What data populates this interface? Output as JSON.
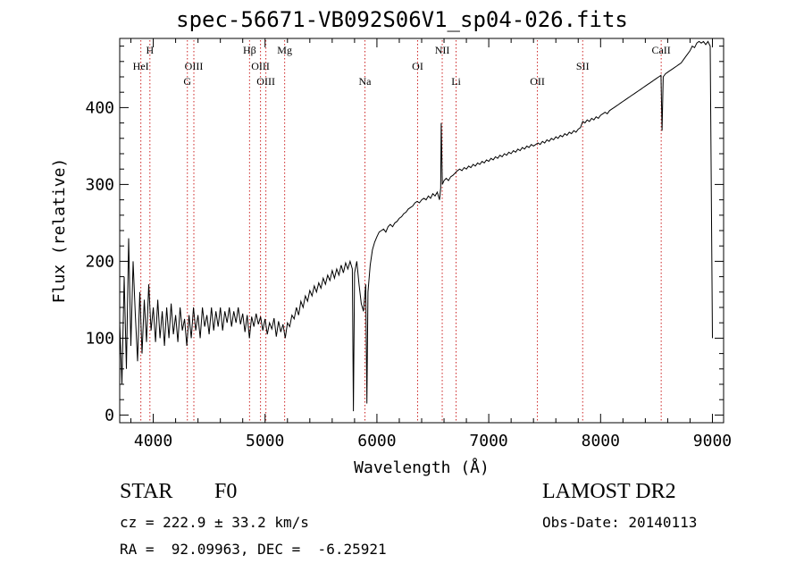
{
  "chart_data": {
    "type": "line",
    "title": "spec-56671-VB092S06V1_sp04-026.fits",
    "xlabel": "Wavelength (Å)",
    "ylabel": "Flux (relative)",
    "xlim": [
      3700,
      9100
    ],
    "ylim": [
      -10,
      490
    ],
    "xticks": [
      4000,
      5000,
      6000,
      7000,
      8000,
      9000
    ],
    "yticks": [
      0,
      100,
      200,
      300,
      400
    ],
    "grid": false,
    "line_color": "#000000",
    "marker_color": "#cc2222",
    "line_markers": [
      {
        "label": "HeI",
        "wavelength": 3889,
        "row": 1
      },
      {
        "label": "H",
        "wavelength": 3970,
        "row": 0
      },
      {
        "label": "OIII",
        "wavelength": 4363,
        "row": 1
      },
      {
        "label": "G",
        "wavelength": 4305,
        "row": 2
      },
      {
        "label": "Hβ",
        "wavelength": 4861,
        "row": 0
      },
      {
        "label": "OIII",
        "wavelength": 4959,
        "row": 1
      },
      {
        "label": "OIII",
        "wavelength": 5007,
        "row": 2
      },
      {
        "label": "Mg",
        "wavelength": 5175,
        "row": 0
      },
      {
        "label": "Na",
        "wavelength": 5893,
        "row": 2
      },
      {
        "label": "OI",
        "wavelength": 6364,
        "row": 1
      },
      {
        "label": "NII",
        "wavelength": 6584,
        "row": 0
      },
      {
        "label": "Li",
        "wavelength": 6708,
        "row": 2
      },
      {
        "label": "OII",
        "wavelength": 7435,
        "row": 2
      },
      {
        "label": "SII",
        "wavelength": 7840,
        "row": 1
      },
      {
        "label": "CaII",
        "wavelength": 8542,
        "row": 0
      }
    ],
    "series": [
      {
        "points": [
          [
            3700,
            120
          ],
          [
            3720,
            40
          ],
          [
            3740,
            180
          ],
          [
            3760,
            60
          ],
          [
            3780,
            230
          ],
          [
            3800,
            90
          ],
          [
            3820,
            200
          ],
          [
            3840,
            130
          ],
          [
            3860,
            70
          ],
          [
            3880,
            160
          ],
          [
            3900,
            80
          ],
          [
            3920,
            150
          ],
          [
            3940,
            95
          ],
          [
            3960,
            170
          ],
          [
            3980,
            110
          ],
          [
            4000,
            140
          ],
          [
            4020,
            95
          ],
          [
            4040,
            150
          ],
          [
            4060,
            100
          ],
          [
            4080,
            135
          ],
          [
            4100,
            90
          ],
          [
            4120,
            140
          ],
          [
            4140,
            100
          ],
          [
            4160,
            145
          ],
          [
            4180,
            105
          ],
          [
            4200,
            130
          ],
          [
            4220,
            95
          ],
          [
            4240,
            140
          ],
          [
            4260,
            110
          ],
          [
            4280,
            125
          ],
          [
            4300,
            90
          ],
          [
            4320,
            130
          ],
          [
            4340,
            100
          ],
          [
            4360,
            140
          ],
          [
            4380,
            110
          ],
          [
            4400,
            130
          ],
          [
            4420,
            100
          ],
          [
            4440,
            140
          ],
          [
            4460,
            115
          ],
          [
            4480,
            130
          ],
          [
            4500,
            105
          ],
          [
            4520,
            140
          ],
          [
            4540,
            110
          ],
          [
            4560,
            135
          ],
          [
            4580,
            115
          ],
          [
            4600,
            140
          ],
          [
            4620,
            110
          ],
          [
            4640,
            135
          ],
          [
            4660,
            120
          ],
          [
            4680,
            140
          ],
          [
            4700,
            115
          ],
          [
            4720,
            135
          ],
          [
            4740,
            120
          ],
          [
            4760,
            140
          ],
          [
            4780,
            118
          ],
          [
            4800,
            132
          ],
          [
            4820,
            108
          ],
          [
            4840,
            130
          ],
          [
            4860,
            100
          ],
          [
            4880,
            128
          ],
          [
            4900,
            115
          ],
          [
            4920,
            132
          ],
          [
            4940,
            118
          ],
          [
            4960,
            128
          ],
          [
            4980,
            110
          ],
          [
            5000,
            125
          ],
          [
            5020,
            105
          ],
          [
            5040,
            120
          ],
          [
            5060,
            112
          ],
          [
            5080,
            126
          ],
          [
            5100,
            102
          ],
          [
            5120,
            122
          ],
          [
            5140,
            108
          ],
          [
            5160,
            118
          ],
          [
            5180,
            100
          ],
          [
            5200,
            120
          ],
          [
            5220,
            115
          ],
          [
            5240,
            130
          ],
          [
            5260,
            125
          ],
          [
            5280,
            140
          ],
          [
            5300,
            130
          ],
          [
            5320,
            148
          ],
          [
            5340,
            140
          ],
          [
            5360,
            155
          ],
          [
            5380,
            148
          ],
          [
            5400,
            162
          ],
          [
            5420,
            155
          ],
          [
            5440,
            168
          ],
          [
            5460,
            160
          ],
          [
            5480,
            172
          ],
          [
            5500,
            165
          ],
          [
            5520,
            178
          ],
          [
            5540,
            170
          ],
          [
            5560,
            182
          ],
          [
            5580,
            175
          ],
          [
            5600,
            188
          ],
          [
            5620,
            178
          ],
          [
            5640,
            190
          ],
          [
            5660,
            182
          ],
          [
            5680,
            195
          ],
          [
            5700,
            185
          ],
          [
            5720,
            198
          ],
          [
            5740,
            190
          ],
          [
            5760,
            200
          ],
          [
            5780,
            190
          ],
          [
            5790,
            5
          ],
          [
            5800,
            185
          ],
          [
            5820,
            200
          ],
          [
            5840,
            170
          ],
          [
            5860,
            145
          ],
          [
            5880,
            135
          ],
          [
            5900,
            170
          ],
          [
            5910,
            15
          ],
          [
            5920,
            160
          ],
          [
            5940,
            195
          ],
          [
            5960,
            215
          ],
          [
            5980,
            225
          ],
          [
            6000,
            232
          ],
          [
            6020,
            238
          ],
          [
            6040,
            240
          ],
          [
            6060,
            242
          ],
          [
            6080,
            238
          ],
          [
            6100,
            245
          ],
          [
            6120,
            248
          ],
          [
            6140,
            245
          ],
          [
            6160,
            250
          ],
          [
            6180,
            252
          ],
          [
            6200,
            256
          ],
          [
            6220,
            258
          ],
          [
            6240,
            262
          ],
          [
            6260,
            264
          ],
          [
            6280,
            268
          ],
          [
            6300,
            270
          ],
          [
            6320,
            272
          ],
          [
            6340,
            276
          ],
          [
            6360,
            278
          ],
          [
            6380,
            276
          ],
          [
            6400,
            280
          ],
          [
            6420,
            282
          ],
          [
            6440,
            280
          ],
          [
            6460,
            285
          ],
          [
            6480,
            282
          ],
          [
            6500,
            288
          ],
          [
            6520,
            285
          ],
          [
            6540,
            290
          ],
          [
            6560,
            280
          ],
          [
            6570,
            295
          ],
          [
            6575,
            380
          ],
          [
            6585,
            300
          ],
          [
            6600,
            305
          ],
          [
            6620,
            308
          ],
          [
            6640,
            305
          ],
          [
            6660,
            310
          ],
          [
            6680,
            312
          ],
          [
            6700,
            315
          ],
          [
            6720,
            318
          ],
          [
            6740,
            320
          ],
          [
            6760,
            318
          ],
          [
            6780,
            322
          ],
          [
            6800,
            320
          ],
          [
            6820,
            324
          ],
          [
            6840,
            322
          ],
          [
            6860,
            326
          ],
          [
            6880,
            324
          ],
          [
            6900,
            328
          ],
          [
            6920,
            326
          ],
          [
            6940,
            330
          ],
          [
            6960,
            328
          ],
          [
            6980,
            332
          ],
          [
            7000,
            330
          ],
          [
            7020,
            334
          ],
          [
            7040,
            332
          ],
          [
            7060,
            336
          ],
          [
            7080,
            334
          ],
          [
            7100,
            338
          ],
          [
            7120,
            336
          ],
          [
            7140,
            340
          ],
          [
            7160,
            338
          ],
          [
            7180,
            342
          ],
          [
            7200,
            340
          ],
          [
            7220,
            344
          ],
          [
            7240,
            342
          ],
          [
            7260,
            346
          ],
          [
            7280,
            344
          ],
          [
            7300,
            348
          ],
          [
            7320,
            346
          ],
          [
            7340,
            350
          ],
          [
            7360,
            348
          ],
          [
            7380,
            352
          ],
          [
            7400,
            350
          ],
          [
            7420,
            352
          ],
          [
            7440,
            354
          ],
          [
            7460,
            352
          ],
          [
            7480,
            356
          ],
          [
            7500,
            354
          ],
          [
            7520,
            358
          ],
          [
            7540,
            356
          ],
          [
            7560,
            360
          ],
          [
            7580,
            358
          ],
          [
            7600,
            362
          ],
          [
            7620,
            360
          ],
          [
            7640,
            364
          ],
          [
            7660,
            362
          ],
          [
            7680,
            366
          ],
          [
            7700,
            364
          ],
          [
            7720,
            368
          ],
          [
            7740,
            366
          ],
          [
            7760,
            370
          ],
          [
            7780,
            368
          ],
          [
            7800,
            372
          ],
          [
            7820,
            374
          ],
          [
            7840,
            382
          ],
          [
            7860,
            380
          ],
          [
            7880,
            384
          ],
          [
            7900,
            382
          ],
          [
            7920,
            386
          ],
          [
            7940,
            384
          ],
          [
            7960,
            388
          ],
          [
            7980,
            386
          ],
          [
            8000,
            390
          ],
          [
            8020,
            392
          ],
          [
            8040,
            394
          ],
          [
            8060,
            392
          ],
          [
            8080,
            396
          ],
          [
            8100,
            398
          ],
          [
            8120,
            400
          ],
          [
            8140,
            402
          ],
          [
            8160,
            404
          ],
          [
            8180,
            406
          ],
          [
            8200,
            408
          ],
          [
            8220,
            410
          ],
          [
            8240,
            412
          ],
          [
            8260,
            414
          ],
          [
            8280,
            416
          ],
          [
            8300,
            418
          ],
          [
            8320,
            420
          ],
          [
            8340,
            422
          ],
          [
            8360,
            424
          ],
          [
            8380,
            426
          ],
          [
            8400,
            428
          ],
          [
            8420,
            430
          ],
          [
            8440,
            432
          ],
          [
            8460,
            434
          ],
          [
            8480,
            436
          ],
          [
            8500,
            438
          ],
          [
            8520,
            440
          ],
          [
            8540,
            442
          ],
          [
            8550,
            370
          ],
          [
            8560,
            440
          ],
          [
            8580,
            444
          ],
          [
            8600,
            446
          ],
          [
            8620,
            448
          ],
          [
            8640,
            450
          ],
          [
            8660,
            452
          ],
          [
            8680,
            454
          ],
          [
            8700,
            456
          ],
          [
            8720,
            458
          ],
          [
            8740,
            462
          ],
          [
            8760,
            466
          ],
          [
            8780,
            470
          ],
          [
            8800,
            474
          ],
          [
            8820,
            480
          ],
          [
            8840,
            478
          ],
          [
            8860,
            484
          ],
          [
            8880,
            486
          ],
          [
            8900,
            484
          ],
          [
            8920,
            486
          ],
          [
            8940,
            482
          ],
          [
            8960,
            486
          ],
          [
            8980,
            480
          ],
          [
            9000,
            100
          ]
        ]
      }
    ]
  },
  "footer": {
    "object_class": "STAR",
    "subclass": "F0",
    "survey": "LAMOST DR2",
    "redshift_text": "cz = 222.9 ± 33.2 km/s",
    "obs_date_text": "Obs-Date: 20140113",
    "coords_text": "RA =  92.09963, DEC =  -6.25921"
  }
}
